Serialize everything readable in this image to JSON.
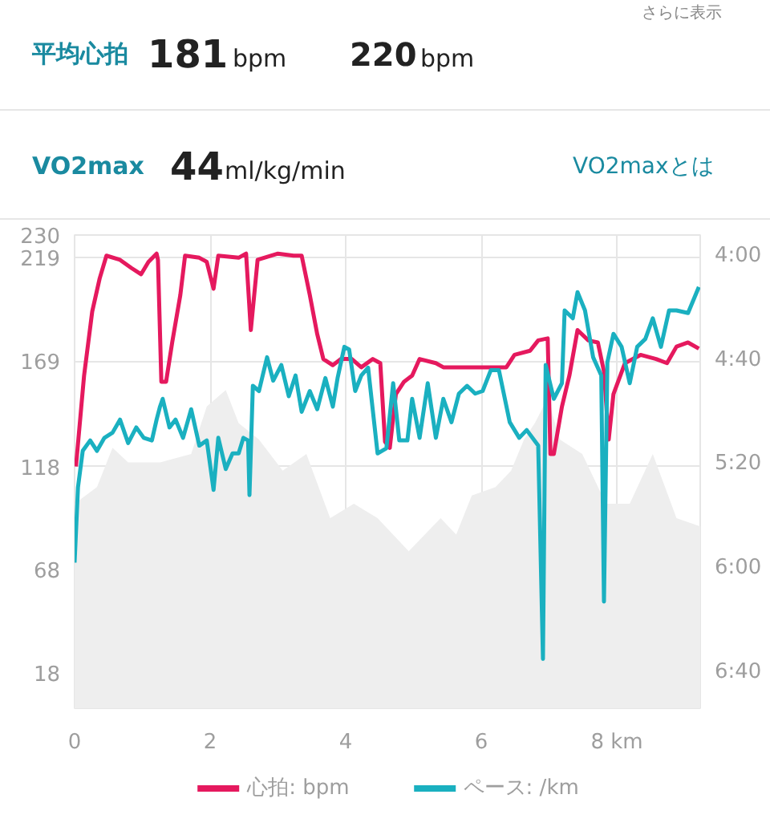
{
  "chart_data": {
    "type": "line",
    "xlim": [
      0,
      9.23
    ],
    "ylim": [
      1,
      230
    ],
    "y2lim": [
      414,
      232
    ],
    "xticks": [
      0,
      2,
      4,
      6,
      {
        "value": 8,
        "label": "8 km"
      }
    ],
    "yticks": [
      18,
      68,
      118,
      169,
      219,
      230
    ],
    "y2ticks": [
      {
        "value": 240,
        "label": "4:00"
      },
      {
        "value": 280,
        "label": "4:40"
      },
      {
        "value": 320,
        "label": "5:20"
      },
      {
        "value": 360,
        "label": "6:00"
      },
      {
        "value": 400,
        "label": "6:40"
      }
    ],
    "grid": true,
    "legend": "bottom",
    "marker": "none",
    "line_style": "solid",
    "annotations": [
      "平均心拍",
      "181",
      "bpm",
      "220",
      "bpm",
      "VO2max",
      "44",
      "ml/kg/min",
      "VO2maxとは",
      "さらに表示"
    ],
    "series": [
      {
        "type": "area",
        "color": "#eeeeee",
        "x": [
          0,
          0.33,
          0.56,
          0.79,
          1.26,
          1.72,
          1.95,
          2.23,
          2.42,
          2.72,
          3.07,
          3.42,
          3.77,
          4.12,
          4.47,
          4.93,
          5.4,
          5.63,
          5.86,
          6.21,
          6.44,
          6.63,
          6.79,
          6.98,
          7.16,
          7.49,
          7.84,
          8.19,
          8.53,
          8.88,
          9.23
        ],
        "values": [
          100,
          108,
          127,
          120,
          120,
          124,
          147,
          155,
          139,
          131,
          116,
          124,
          93,
          100,
          93,
          77,
          93,
          85,
          104,
          108,
          116,
          131,
          139,
          151,
          131,
          124,
          100,
          100,
          124,
          93,
          89
        ]
      },
      {
        "name": "心拍: bpm",
        "color": "#e5195e",
        "x": [
          0.02,
          0.14,
          0.26,
          0.37,
          0.47,
          0.67,
          0.84,
          0.98,
          1.09,
          1.21,
          1.23,
          1.28,
          1.35,
          1.44,
          1.56,
          1.63,
          1.84,
          1.95,
          2.05,
          2.12,
          2.42,
          2.53,
          2.6,
          2.7,
          3.0,
          3.23,
          3.35,
          3.47,
          3.58,
          3.67,
          3.81,
          3.93,
          4.09,
          4.23,
          4.4,
          4.51,
          4.58,
          4.65,
          4.74,
          4.86,
          4.98,
          5.09,
          5.33,
          5.44,
          5.91,
          6.37,
          6.49,
          6.72,
          6.84,
          6.98,
          7.02,
          7.07,
          7.19,
          7.3,
          7.42,
          7.58,
          7.72,
          7.81,
          7.88,
          7.95,
          8.12,
          8.35,
          8.58,
          8.74,
          8.88,
          9.05,
          9.21
        ],
        "values": [
          118,
          162,
          193,
          209,
          220,
          218,
          214,
          211,
          217,
          221,
          218,
          159,
          159,
          178,
          201,
          220,
          219,
          217,
          204,
          220,
          219,
          221,
          184,
          218,
          221,
          220,
          220,
          201,
          182,
          170,
          167,
          170,
          170,
          166,
          170,
          168,
          130,
          127,
          153,
          159,
          162,
          170,
          168,
          166,
          166,
          166,
          172,
          174,
          179,
          180,
          124,
          124,
          147,
          162,
          184,
          179,
          178,
          164,
          131,
          153,
          168,
          172,
          170,
          168,
          176,
          178,
          175
        ]
      },
      {
        "name": "ペース: /km",
        "color": "#1ab0c0",
        "axis": "y2",
        "x": [
          0,
          0.05,
          0.12,
          0.23,
          0.33,
          0.44,
          0.56,
          0.67,
          0.79,
          0.91,
          1.02,
          1.14,
          1.21,
          1.26,
          1.3,
          1.4,
          1.49,
          1.6,
          1.72,
          1.84,
          1.95,
          2.05,
          2.12,
          2.23,
          2.33,
          2.42,
          2.49,
          2.56,
          2.58,
          2.63,
          2.72,
          2.84,
          2.93,
          3.05,
          3.16,
          3.26,
          3.35,
          3.47,
          3.58,
          3.7,
          3.81,
          3.88,
          3.98,
          4.05,
          4.14,
          4.23,
          4.33,
          4.47,
          4.6,
          4.7,
          4.79,
          4.91,
          4.98,
          5.09,
          5.21,
          5.33,
          5.44,
          5.56,
          5.67,
          5.79,
          5.91,
          6.02,
          6.14,
          6.26,
          6.42,
          6.56,
          6.67,
          6.84,
          6.91,
          6.95,
          7.07,
          7.19,
          7.23,
          7.35,
          7.42,
          7.53,
          7.65,
          7.77,
          7.81,
          7.86,
          7.95,
          8.07,
          8.19,
          8.3,
          8.42,
          8.53,
          8.65,
          8.77,
          8.88,
          9.05,
          9.21
        ],
        "values": [
          358,
          329,
          315,
          311,
          315,
          310,
          308,
          303,
          312,
          306,
          310,
          311,
          303,
          298,
          295,
          306,
          303,
          310,
          299,
          313,
          311,
          330,
          310,
          322,
          316,
          316,
          310,
          311,
          332,
          290,
          292,
          279,
          288,
          282,
          294,
          286,
          300,
          292,
          299,
          287,
          298,
          287,
          275,
          276,
          292,
          286,
          283,
          316,
          314,
          289,
          311,
          311,
          295,
          310,
          289,
          310,
          295,
          304,
          293,
          290,
          293,
          292,
          284,
          284,
          304,
          310,
          307,
          313,
          395,
          282,
          295,
          289,
          261,
          264,
          254,
          261,
          279,
          286,
          373,
          281,
          270,
          275,
          289,
          275,
          272,
          264,
          275,
          261,
          261,
          262,
          252
        ]
      }
    ]
  }
}
